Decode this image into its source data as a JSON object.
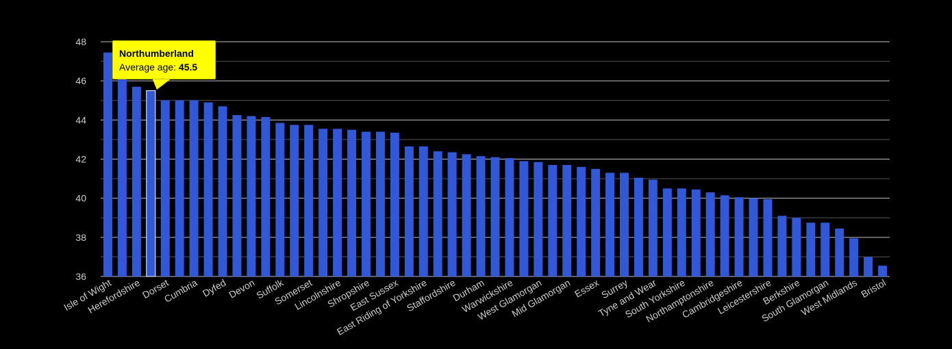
{
  "chart_data": {
    "type": "bar",
    "title": "",
    "xlabel": "",
    "ylabel": "",
    "ylim": [
      36,
      48
    ],
    "yticks": [
      "36",
      "38",
      "40",
      "42",
      "44",
      "46",
      "48"
    ],
    "grid": true,
    "colors": {
      "background": "#000000",
      "bar": "#3058d8",
      "grid": "#c0c0c0",
      "text": "#cccccc",
      "highlight_border": "#ffffff",
      "tooltip_bg": "#ffff00"
    },
    "categories": [
      "Isle of Wight",
      "",
      "Herefordshire",
      "",
      "Dorset",
      "",
      "Cumbria",
      "",
      "Dyfed",
      "",
      "Devon",
      "",
      "Suffolk",
      "",
      "Somerset",
      "",
      "Lincolnshire",
      "",
      "Shropshire",
      "",
      "East Sussex",
      "",
      "East Riding of Yorkshire",
      "",
      "Staffordshire",
      "",
      "Durham",
      "",
      "Warwickshire",
      "",
      "West Glamorgan",
      "",
      "Mid Glamorgan",
      "",
      "Essex",
      "",
      "Surrey",
      "",
      "Tyne and Wear",
      "",
      "South Yorkshire",
      "",
      "Northamptonshire",
      "",
      "Cambridgeshire",
      "",
      "Leicestershire",
      "",
      "Berkshire",
      "",
      "South Glamorgan",
      "",
      "West Midlands",
      "",
      "Bristol"
    ],
    "values": [
      47.45,
      46.1,
      45.7,
      45.5,
      45.0,
      45.0,
      45.0,
      44.9,
      44.7,
      44.25,
      44.2,
      44.15,
      43.85,
      43.75,
      43.75,
      43.55,
      43.55,
      43.5,
      43.4,
      43.4,
      43.35,
      42.65,
      42.65,
      42.4,
      42.35,
      42.25,
      42.15,
      42.1,
      42.05,
      41.9,
      41.85,
      41.7,
      41.7,
      41.6,
      41.5,
      41.3,
      41.3,
      41.05,
      40.95,
      40.5,
      40.5,
      40.45,
      40.3,
      40.15,
      40.05,
      40.0,
      39.95,
      39.1,
      39.0,
      38.75,
      38.75,
      38.45,
      37.95,
      37.0,
      36.55
    ],
    "highlight_index": 3,
    "tooltip": {
      "name": "Northumberland",
      "label": "Average age:",
      "value": "45.5"
    }
  }
}
